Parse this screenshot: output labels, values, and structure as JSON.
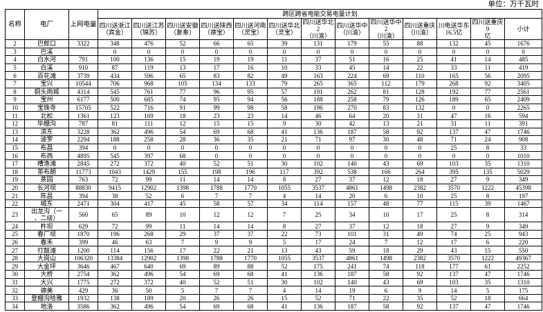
{
  "meta": {
    "unit_label": "单位：万千瓦时"
  },
  "table": {
    "group_header": "跨区跨省电能交易电量计划",
    "fixed_headers": [
      "名称",
      "电厂",
      "上网电量"
    ],
    "trade_headers": [
      "四川送浙江\n（宾金）",
      "四川送江苏\n（锦苏）",
      "四川送安徽\n（复奉）",
      "四川送陕西\n（德宝）",
      "四川送河南\n（灵宝）",
      "四川送华北\n（灵宝）",
      "四川送华北2\n（川渝）",
      "四川送华中\n（川渝）",
      "四川送华中2\n（川渝）",
      "四川送重庆\n（川渝）",
      "川电送华东\n16.5亿",
      "四川送重庆9\n亿",
      "小计"
    ],
    "rows": [
      {
        "id": "2",
        "plant": "巴郎口",
        "grid": "3322",
        "values": [
          "348",
          "476",
          "52",
          "66",
          "65",
          "39",
          "131",
          "179",
          "55",
          "88",
          "132",
          "45",
          "1676"
        ]
      },
      {
        "id": "3",
        "plant": "巴溪",
        "grid": "",
        "values": [
          "0",
          "0",
          "0",
          "0",
          "0",
          "0",
          "0",
          "0",
          "0",
          "0",
          "0",
          "0",
          "0"
        ]
      },
      {
        "id": "4",
        "plant": "白水河",
        "grid": "791",
        "values": [
          "100",
          "136",
          "15",
          "19",
          "19",
          "11",
          "37",
          "51",
          "16",
          "25",
          "41",
          "14",
          "485"
        ]
      },
      {
        "id": "5",
        "plant": "白溪",
        "grid": "910",
        "values": [
          "87",
          "119",
          "13",
          "17",
          "16",
          "10",
          "33",
          "45",
          "14",
          "22",
          "33",
          "11",
          "419"
        ]
      },
      {
        "id": "6",
        "plant": "百花滩",
        "grid": "3739",
        "values": [
          "434",
          "596",
          "65",
          "83",
          "82",
          "49",
          "163",
          "224",
          "69",
          "110",
          "165",
          "56",
          "2095"
        ]
      },
      {
        "id": "7",
        "plant": "宝兴",
        "grid": "10544",
        "values": [
          "706",
          "968",
          "105",
          "134",
          "133",
          "79",
          "265",
          "365",
          "112",
          "179",
          "268",
          "92",
          "3405"
        ]
      },
      {
        "id": "8",
        "plant": "铜头雨城",
        "grid": "4314",
        "values": [
          "545",
          "761",
          "77",
          "96",
          "95",
          "57",
          "191",
          "262",
          "81",
          "128",
          "192",
          "77",
          "2561"
        ]
      },
      {
        "id": "9",
        "plant": "宝州",
        "grid": "6177",
        "values": [
          "500",
          "685",
          "74",
          "95",
          "94",
          "56",
          "188",
          "258",
          "79",
          "126",
          "189",
          "65",
          "2409"
        ]
      },
      {
        "id": "10",
        "plant": "宝珠寺",
        "grid": "15705",
        "values": [
          "522",
          "716",
          "91",
          "99",
          "98",
          "58",
          "196",
          "270",
          "83",
          "132",
          "0",
          "0",
          "2265"
        ]
      },
      {
        "id": "11",
        "plant": "北松",
        "grid": "1361",
        "values": [
          "123",
          "169",
          "18",
          "23",
          "23",
          "14",
          "46",
          "64",
          "20",
          "31",
          "47",
          "16",
          "594"
        ]
      },
      {
        "id": "12",
        "plant": "毕棚沟",
        "grid": "787",
        "values": [
          "81",
          "111",
          "12",
          "15",
          "15",
          "9",
          "30",
          "42",
          "13",
          "21",
          "31",
          "11",
          "391"
        ]
      },
      {
        "id": "13",
        "plant": "滨东",
        "grid": "3228",
        "values": [
          "362",
          "496",
          "54",
          "69",
          "68",
          "41",
          "136",
          "187",
          "58",
          "92",
          "137",
          "47",
          "1746"
        ]
      },
      {
        "id": "14",
        "plant": "波罗",
        "grid": "2294",
        "values": [
          "188",
          "258",
          "28",
          "36",
          "35",
          "21",
          "71",
          "97",
          "30",
          "48",
          "71",
          "24",
          "908"
        ]
      },
      {
        "id": "15",
        "plant": "布昌",
        "grid": "394",
        "values": [
          "0",
          "0",
          "0",
          "0",
          "0",
          "0",
          "0",
          "0",
          "0",
          "0",
          "25",
          "8",
          "33"
        ]
      },
      {
        "id": "16",
        "plant": "布西",
        "grid": "4895",
        "values": [
          "545",
          "397",
          "68",
          "0",
          "0",
          "0",
          "0",
          "0",
          "0",
          "0",
          "0",
          "0",
          "1010"
        ]
      },
      {
        "id": "17",
        "plant": "槽渔滩",
        "grid": "2845",
        "values": [
          "272",
          "372",
          "40",
          "52",
          "51",
          "30",
          "102",
          "140",
          "43",
          "69",
          "103",
          "35",
          "1310"
        ]
      },
      {
        "id": "18",
        "plant": "茶布朗",
        "grid": "11773",
        "values": [
          "1043",
          "1429",
          "155",
          "198",
          "196",
          "117",
          "392",
          "538",
          "166",
          "264",
          "395",
          "135",
          "5029"
        ]
      },
      {
        "id": "19",
        "plant": "茶园",
        "grid": "763",
        "values": [
          "72",
          "99",
          "11",
          "14",
          "14",
          "8",
          "27",
          "37",
          "12",
          "18",
          "27",
          "9",
          "349"
        ]
      },
      {
        "id": "20",
        "plant": "长河坝",
        "grid": "88830",
        "values": [
          "9415",
          "12902",
          "1398",
          "1788",
          "1770",
          "1055",
          "3537",
          "4861",
          "1498",
          "2382",
          "3570",
          "1222",
          "45398"
        ]
      },
      {
        "id": "21",
        "plant": "陈昌",
        "grid": "394",
        "values": [
          "38",
          "52",
          "6",
          "7",
          "7",
          "4",
          "14",
          "20",
          "6",
          "10",
          "25",
          "8",
          "197"
        ]
      },
      {
        "id": "22",
        "plant": "城东",
        "grid": "2471",
        "values": [
          "304",
          "417",
          "45",
          "58",
          "57",
          "34",
          "114",
          "157",
          "48",
          "77",
          "115",
          "39",
          "1467"
        ]
      },
      {
        "id": "23",
        "plant": "出龙沟（一\n、二级）",
        "grid": "560",
        "values": [
          "65",
          "89",
          "10",
          "12",
          "12",
          "7",
          "25",
          "34",
          "10",
          "17",
          "25",
          "8",
          "314"
        ]
      },
      {
        "id": "24",
        "plant": "杵坝",
        "grid": "629",
        "values": [
          "72",
          "99",
          "11",
          "14",
          "14",
          "8",
          "27",
          "37",
          "12",
          "18",
          "27",
          "9",
          "349"
        ]
      },
      {
        "id": "25",
        "plant": "春厂坝",
        "grid": "1870",
        "values": [
          "196",
          "268",
          "29",
          "37",
          "37",
          "22",
          "73",
          "101",
          "31",
          "49",
          "74",
          "25",
          "943"
        ]
      },
      {
        "id": "26",
        "plant": "春禾",
        "grid": "399",
        "values": [
          "46",
          "63",
          "7",
          "9",
          "9",
          "5",
          "17",
          "24",
          "7",
          "12",
          "17",
          "6",
          "220"
        ]
      },
      {
        "id": "27",
        "plant": "打鼓滩",
        "grid": "1200",
        "values": [
          "114",
          "156",
          "17",
          "22",
          "21",
          "13",
          "43",
          "59",
          "18",
          "29",
          "43",
          "15",
          "550"
        ]
      },
      {
        "id": "28",
        "plant": "大岗山",
        "grid": "106320",
        "values": [
          "13384",
          "12902",
          "1398",
          "1788",
          "1770",
          "1055",
          "3537",
          "4861",
          "1498",
          "2382",
          "3570",
          "1222",
          "49367"
        ]
      },
      {
        "id": "29",
        "plant": "大金坪",
        "grid": "3646",
        "values": [
          "467",
          "640",
          "69",
          "89",
          "88",
          "52",
          "175",
          "241",
          "74",
          "118",
          "177",
          "61",
          "2252"
        ]
      },
      {
        "id": "30",
        "plant": "大桥",
        "grid": "2754",
        "values": [
          "362",
          "496",
          "54",
          "69",
          "68",
          "41",
          "136",
          "187",
          "58",
          "92",
          "137",
          "47",
          "1746"
        ]
      },
      {
        "id": "31",
        "plant": "大兴",
        "grid": "1775",
        "values": [
          "272",
          "372",
          "40",
          "52",
          "51",
          "30",
          "102",
          "140",
          "43",
          "69",
          "103",
          "35",
          "1310"
        ]
      },
      {
        "id": "32",
        "plant": "德美",
        "grid": "429",
        "values": [
          "36",
          "50",
          "5",
          "7",
          "7",
          "4",
          "14",
          "19",
          "6",
          "9",
          "14",
          "5",
          "175"
        ]
      },
      {
        "id": "33",
        "plant": "登棚沟哈雅",
        "grid": "1932",
        "values": [
          "138",
          "189",
          "20",
          "26",
          "26",
          "15",
          "52",
          "71",
          "22",
          "35",
          "52",
          "18",
          "664"
        ]
      },
      {
        "id": "34",
        "plant": "地洛",
        "grid": "3586",
        "values": [
          "362",
          "496",
          "54",
          "69",
          "68",
          "41",
          "136",
          "187",
          "58",
          "92",
          "137",
          "47",
          "1746"
        ]
      }
    ]
  }
}
